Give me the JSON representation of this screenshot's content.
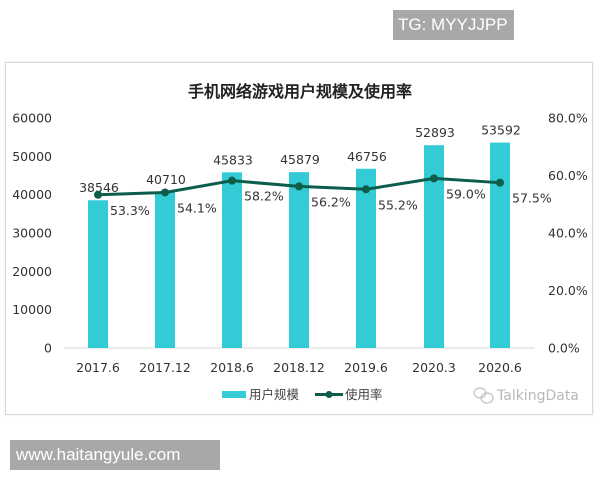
{
  "overlay": {
    "tg_badge": "TG: MYYJJPP",
    "site_badge": "www.haitangyule.com"
  },
  "colors": {
    "bar": "#33ccd6",
    "line": "#0e5c4a",
    "badge_bg": "#a8a8a8"
  },
  "watermark": "TalkingData",
  "chart_data": {
    "type": "bar",
    "title": "手机网络游戏用户规模及使用率",
    "categories": [
      "2017.6",
      "2017.12",
      "2018.6",
      "2018.12",
      "2019.6",
      "2020.3",
      "2020.6"
    ],
    "series": [
      {
        "name": "用户规模",
        "type": "bar",
        "axis": "left",
        "values": [
          38546,
          40710,
          45833,
          45879,
          46756,
          52893,
          53592
        ],
        "labels": [
          "38546",
          "40710",
          "45833",
          "45879",
          "46756",
          "52893",
          "53592"
        ]
      },
      {
        "name": "使用率",
        "type": "line",
        "axis": "right",
        "values": [
          53.3,
          54.1,
          58.2,
          56.2,
          55.2,
          59.0,
          57.5
        ],
        "labels": [
          "53.3%",
          "54.1%",
          "58.2%",
          "56.2%",
          "55.2%",
          "59.0%",
          "57.5%"
        ]
      }
    ],
    "left_axis": {
      "ylim": [
        0,
        60000
      ],
      "ticks": [
        "0",
        "10000",
        "20000",
        "30000",
        "40000",
        "50000",
        "60000"
      ]
    },
    "right_axis": {
      "ylim": [
        0,
        80
      ],
      "ticks": [
        "0.0%",
        "20.0%",
        "40.0%",
        "60.0%",
        "80.0%"
      ]
    },
    "xlabel": "",
    "ylabel": "",
    "grid": false,
    "legend": {
      "position": "bottom",
      "entries": [
        "用户规模",
        "使用率"
      ]
    }
  }
}
